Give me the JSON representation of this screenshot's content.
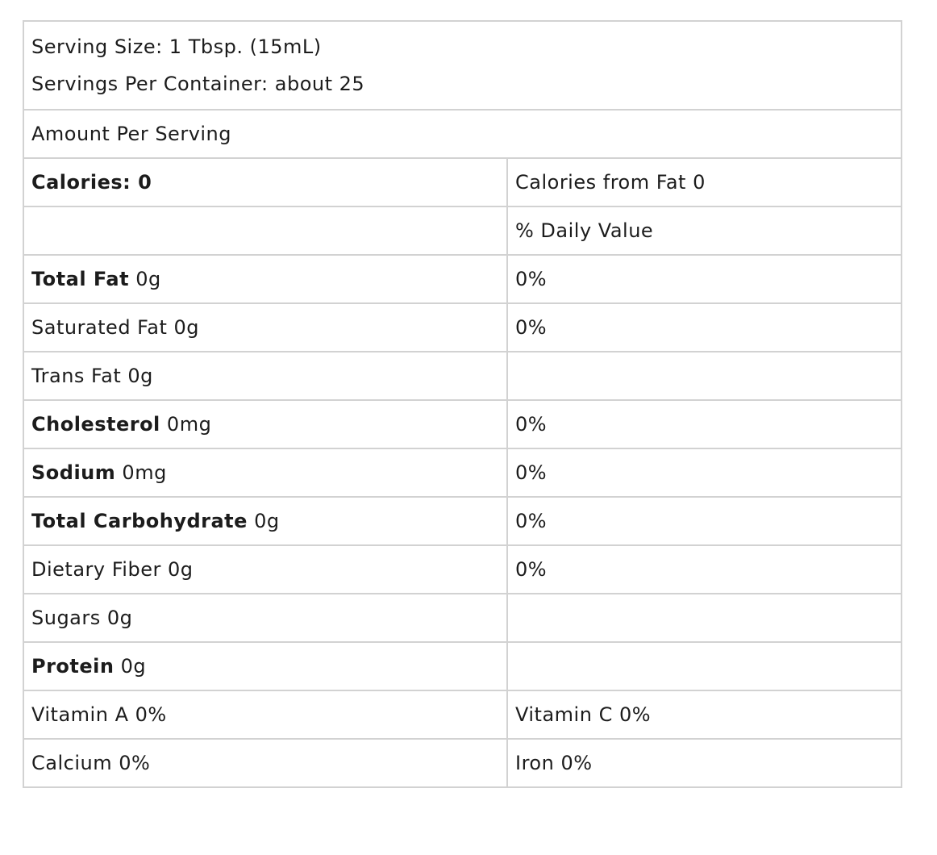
{
  "header": {
    "serving_size": "Serving Size: 1 Tbsp. (15mL)",
    "servings_per_container": "Servings Per Container: about 25"
  },
  "amount_per_serving": "Amount Per Serving",
  "rows": [
    [
      {
        "bold": "Calories: 0"
      },
      "Calories from Fat 0"
    ],
    [
      null,
      "% Daily Value"
    ],
    [
      {
        "bold": "Total Fat",
        "text": "0g"
      },
      "0%"
    ],
    [
      {
        "text": "Saturated Fat 0g"
      },
      "0%"
    ],
    [
      {
        "text": "Trans Fat 0g"
      },
      null
    ],
    [
      {
        "bold": "Cholesterol",
        "text": "0mg"
      },
      "0%"
    ],
    [
      {
        "bold": "Sodium",
        "text": "0mg"
      },
      "0%"
    ],
    [
      {
        "bold": "Total Carbohydrate",
        "text": "0g"
      },
      "0%"
    ],
    [
      {
        "text": "Dietary Fiber 0g"
      },
      "0%"
    ],
    [
      {
        "text": "Sugars 0g"
      },
      null
    ],
    [
      {
        "bold": "Protein",
        "text": "0g"
      },
      null
    ],
    [
      {
        "text": "Vitamin A 0%"
      },
      "Vitamin C 0%"
    ],
    [
      {
        "text": "Calcium 0%"
      },
      "Iron 0%"
    ]
  ]
}
